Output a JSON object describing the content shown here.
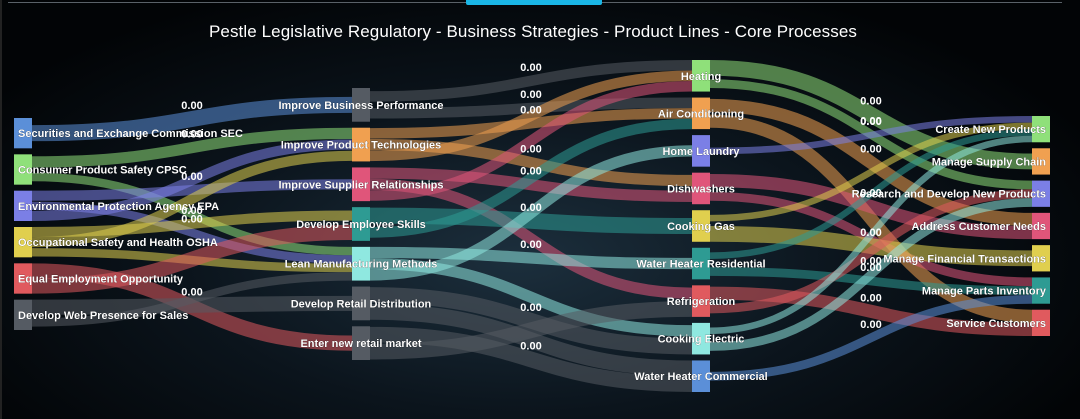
{
  "title": "Pestle Legislative Regulatory - Business Strategies - Product Lines - Core Processes",
  "value_label": "0.00",
  "columns": [
    {
      "name": "pestle",
      "nodes": [
        {
          "label": "Securities and Exchange Commission SEC",
          "color": "#5b8fd8"
        },
        {
          "label": "Consumer Product Safety CPSC",
          "color": "#8fe07a"
        },
        {
          "label": "Environmental Protection Agency EPA",
          "color": "#7b7fe6"
        },
        {
          "label": "Occupational Safety and Health OSHA",
          "color": "#e0cf4e"
        },
        {
          "label": "Equal Employment Opportunity",
          "color": "#e05a5e"
        },
        {
          "label": "Develop Web Presence for Sales",
          "color": "#555b63"
        }
      ]
    },
    {
      "name": "strategies",
      "nodes": [
        {
          "label": "Improve Business Performance",
          "color": "#555b63"
        },
        {
          "label": "Improve Product Technologies",
          "color": "#f0a050"
        },
        {
          "label": "Improve Supplier Relationships",
          "color": "#e0557a"
        },
        {
          "label": "Develop Employee Skills",
          "color": "#2e9b93"
        },
        {
          "label": "Lean Manufacturing Methods",
          "color": "#8fe8e0"
        },
        {
          "label": "Develop Retail Distribution",
          "color": "#555b63"
        },
        {
          "label": "Enter new retail market",
          "color": "#555b63"
        }
      ]
    },
    {
      "name": "products",
      "nodes": [
        {
          "label": "Heating",
          "color": "#8fe07a"
        },
        {
          "label": "Air Conditioning",
          "color": "#f0a050"
        },
        {
          "label": "Home Laundry",
          "color": "#7b7fe6"
        },
        {
          "label": "Dishwashers",
          "color": "#e0557a"
        },
        {
          "label": "Cooking Gas",
          "color": "#e0cf4e"
        },
        {
          "label": "Water Heater Residential",
          "color": "#2e9b93"
        },
        {
          "label": "Refrigeration",
          "color": "#e05a5e"
        },
        {
          "label": "Cooking Electric",
          "color": "#8fe8e0"
        },
        {
          "label": "Water Heater Commercial",
          "color": "#5b8fd8"
        }
      ]
    },
    {
      "name": "processes",
      "nodes": [
        {
          "label": "Create New Products",
          "color": "#8fe07a"
        },
        {
          "label": "Manage Supply Chain",
          "color": "#f0a050"
        },
        {
          "label": "Research and Develop New Products",
          "color": "#7b7fe6"
        },
        {
          "label": "Address Customer Needs",
          "color": "#e0557a"
        },
        {
          "label": "Manage Financial Transactions",
          "color": "#e0cf4e"
        },
        {
          "label": "Manage Parts Inventory",
          "color": "#2e9b93"
        },
        {
          "label": "Service Customers",
          "color": "#e05a5e"
        }
      ]
    }
  ],
  "links": [
    {
      "from": [
        0,
        0
      ],
      "to": [
        1,
        0
      ],
      "value": 0.0,
      "color": "#5b8fd8",
      "show_value": true
    },
    {
      "from": [
        0,
        1
      ],
      "to": [
        1,
        1
      ],
      "value": 0.0,
      "color": "#8fe07a",
      "show_value": true
    },
    {
      "from": [
        0,
        1
      ],
      "to": [
        1,
        4
      ],
      "value": 0.0,
      "color": "#8fe07a",
      "show_value": false
    },
    {
      "from": [
        0,
        2
      ],
      "to": [
        1,
        2
      ],
      "value": 0.0,
      "color": "#7b7fe6",
      "show_value": true
    },
    {
      "from": [
        0,
        2
      ],
      "to": [
        1,
        4
      ],
      "value": 0.0,
      "color": "#7b7fe6",
      "show_value": true
    },
    {
      "from": [
        0,
        2
      ],
      "to": [
        1,
        1
      ],
      "value": 0.0,
      "color": "#7b7fe6",
      "show_value": false
    },
    {
      "from": [
        0,
        3
      ],
      "to": [
        1,
        3
      ],
      "value": 0.0,
      "color": "#e0cf4e",
      "show_value": true
    },
    {
      "from": [
        0,
        3
      ],
      "to": [
        1,
        1
      ],
      "value": 0.0,
      "color": "#e0cf4e",
      "show_value": false
    },
    {
      "from": [
        0,
        3
      ],
      "to": [
        1,
        4
      ],
      "value": 0.0,
      "color": "#e0cf4e",
      "show_value": false
    },
    {
      "from": [
        0,
        4
      ],
      "to": [
        1,
        6
      ],
      "value": 0.0,
      "color": "#e05a5e",
      "show_value": false
    },
    {
      "from": [
        0,
        4
      ],
      "to": [
        1,
        3
      ],
      "value": 0.0,
      "color": "#e05a5e",
      "show_value": false
    },
    {
      "from": [
        0,
        5
      ],
      "to": [
        1,
        5
      ],
      "value": 0.0,
      "color": "#555b63",
      "show_value": true
    },
    {
      "from": [
        0,
        5
      ],
      "to": [
        1,
        4
      ],
      "value": 0.0,
      "color": "#555b63",
      "show_value": false
    },
    {
      "from": [
        1,
        0
      ],
      "to": [
        2,
        0
      ],
      "value": 0.0,
      "color": "#555b63",
      "show_value": true
    },
    {
      "from": [
        1,
        0
      ],
      "to": [
        2,
        1
      ],
      "value": 0.0,
      "color": "#555b63",
      "show_value": true
    },
    {
      "from": [
        1,
        1
      ],
      "to": [
        2,
        1
      ],
      "value": 0.0,
      "color": "#f0a050",
      "show_value": true
    },
    {
      "from": [
        1,
        1
      ],
      "to": [
        2,
        3
      ],
      "value": 0.0,
      "color": "#f0a050",
      "show_value": true
    },
    {
      "from": [
        1,
        1
      ],
      "to": [
        2,
        0
      ],
      "value": 0.0,
      "color": "#f0a050",
      "show_value": false
    },
    {
      "from": [
        1,
        2
      ],
      "to": [
        2,
        3
      ],
      "value": 0.0,
      "color": "#e0557a",
      "show_value": true
    },
    {
      "from": [
        1,
        2
      ],
      "to": [
        2,
        6
      ],
      "value": 0.0,
      "color": "#e0557a",
      "show_value": false
    },
    {
      "from": [
        1,
        2
      ],
      "to": [
        2,
        0
      ],
      "value": 0.0,
      "color": "#e0557a",
      "show_value": false
    },
    {
      "from": [
        1,
        3
      ],
      "to": [
        2,
        4
      ],
      "value": 0.0,
      "color": "#2e9b93",
      "show_value": true
    },
    {
      "from": [
        1,
        3
      ],
      "to": [
        2,
        1
      ],
      "value": 0.0,
      "color": "#2e9b93",
      "show_value": false
    },
    {
      "from": [
        1,
        4
      ],
      "to": [
        2,
        5
      ],
      "value": 0.0,
      "color": "#8fe8e0",
      "show_value": true
    },
    {
      "from": [
        1,
        4
      ],
      "to": [
        2,
        7
      ],
      "value": 0.0,
      "color": "#8fe8e0",
      "show_value": false
    },
    {
      "from": [
        1,
        4
      ],
      "to": [
        2,
        2
      ],
      "value": 0.0,
      "color": "#8fe8e0",
      "show_value": false
    },
    {
      "from": [
        1,
        5
      ],
      "to": [
        2,
        7
      ],
      "value": 0.0,
      "color": "#555b63",
      "show_value": true
    },
    {
      "from": [
        1,
        5
      ],
      "to": [
        2,
        8
      ],
      "value": 0.0,
      "color": "#555b63",
      "show_value": false
    },
    {
      "from": [
        1,
        6
      ],
      "to": [
        2,
        8
      ],
      "value": 0.0,
      "color": "#555b63",
      "show_value": true
    },
    {
      "from": [
        1,
        6
      ],
      "to": [
        2,
        6
      ],
      "value": 0.0,
      "color": "#555b63",
      "show_value": false
    },
    {
      "from": [
        2,
        0
      ],
      "to": [
        3,
        1
      ],
      "value": 0.0,
      "color": "#8fe07a",
      "show_value": true
    },
    {
      "from": [
        2,
        0
      ],
      "to": [
        3,
        2
      ],
      "value": 0.0,
      "color": "#8fe07a",
      "show_value": true
    },
    {
      "from": [
        2,
        1
      ],
      "to": [
        3,
        3
      ],
      "value": 0.0,
      "color": "#f0a050",
      "show_value": true
    },
    {
      "from": [
        2,
        1
      ],
      "to": [
        3,
        6
      ],
      "value": 0.0,
      "color": "#f0a050",
      "show_value": false
    },
    {
      "from": [
        2,
        2
      ],
      "to": [
        3,
        0
      ],
      "value": 0.0,
      "color": "#7b7fe6",
      "show_value": true
    },
    {
      "from": [
        2,
        3
      ],
      "to": [
        3,
        3
      ],
      "value": 0.0,
      "color": "#e0557a",
      "show_value": true
    },
    {
      "from": [
        2,
        3
      ],
      "to": [
        3,
        5
      ],
      "value": 0.0,
      "color": "#e0557a",
      "show_value": false
    },
    {
      "from": [
        2,
        4
      ],
      "to": [
        3,
        0
      ],
      "value": 0.0,
      "color": "#e0cf4e",
      "show_value": false
    },
    {
      "from": [
        2,
        4
      ],
      "to": [
        3,
        4
      ],
      "value": 0.0,
      "color": "#e0cf4e",
      "show_value": true
    },
    {
      "from": [
        2,
        5
      ],
      "to": [
        3,
        0
      ],
      "value": 0.0,
      "color": "#2e9b93",
      "show_value": false
    },
    {
      "from": [
        2,
        5
      ],
      "to": [
        3,
        5
      ],
      "value": 0.0,
      "color": "#2e9b93",
      "show_value": true
    },
    {
      "from": [
        2,
        6
      ],
      "to": [
        3,
        6
      ],
      "value": 0.0,
      "color": "#e05a5e",
      "show_value": true
    },
    {
      "from": [
        2,
        6
      ],
      "to": [
        3,
        2
      ],
      "value": 0.0,
      "color": "#e05a5e",
      "show_value": false
    },
    {
      "from": [
        2,
        7
      ],
      "to": [
        3,
        0
      ],
      "value": 0.0,
      "color": "#8fe8e0",
      "show_value": false
    },
    {
      "from": [
        2,
        7
      ],
      "to": [
        3,
        2
      ],
      "value": 0.0,
      "color": "#8fe8e0",
      "show_value": true
    },
    {
      "from": [
        2,
        8
      ],
      "to": [
        3,
        5
      ],
      "value": 0.0,
      "color": "#5b8fd8",
      "show_value": true
    }
  ]
}
